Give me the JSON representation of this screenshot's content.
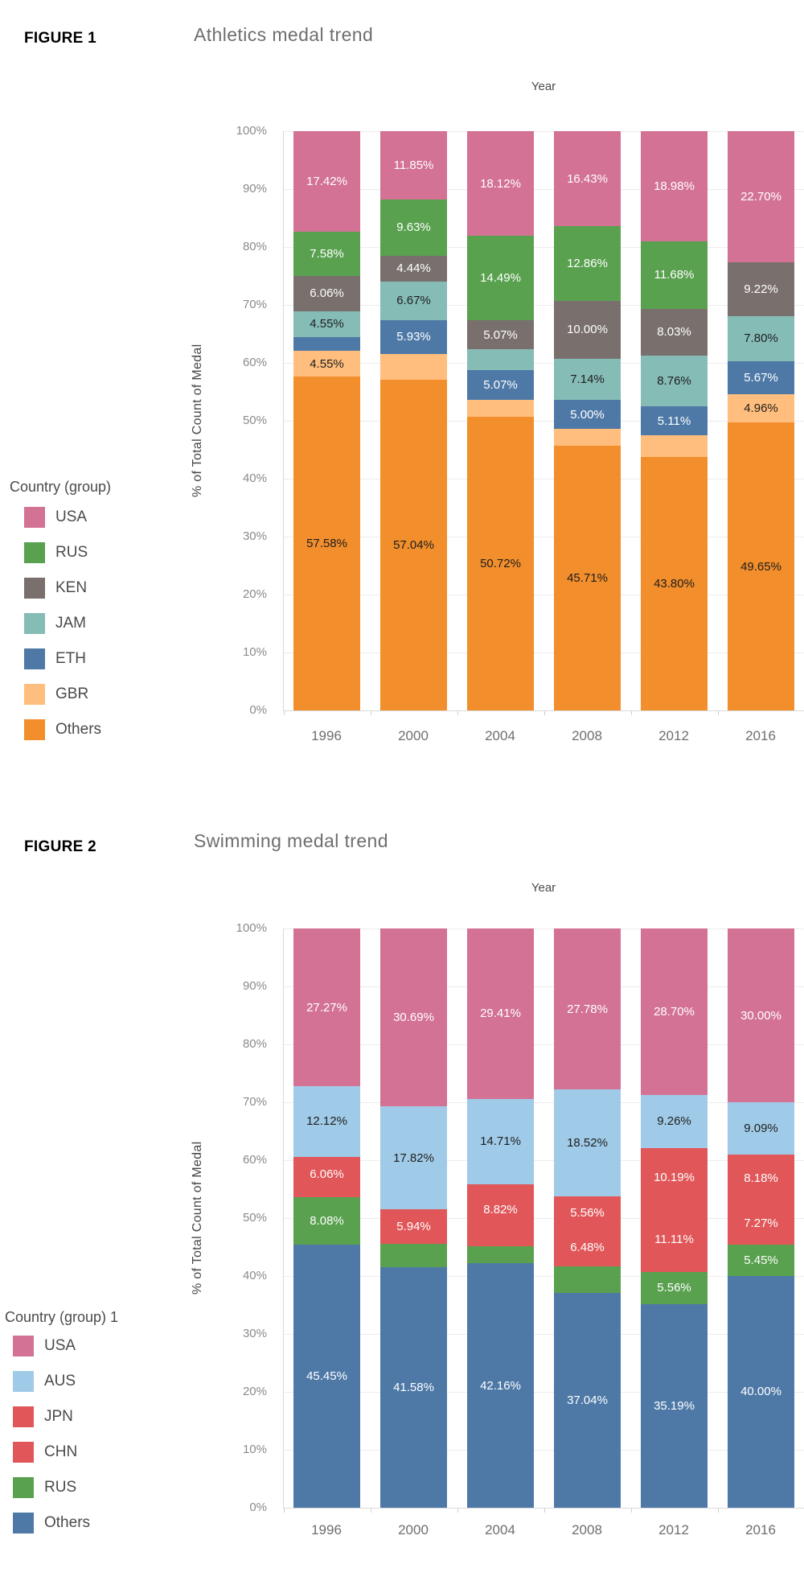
{
  "figures": [
    {
      "figure_label": "FIGURE 1",
      "title": "Athletics medal trend",
      "x_axis_title": "Year",
      "y_axis_title": "% of Total Count of Medal",
      "y_ticks": [
        "100%",
        "90%",
        "80%",
        "70%",
        "60%",
        "50%",
        "40%",
        "30%",
        "20%",
        "10%",
        "0%"
      ],
      "legend_title": "Country (group)",
      "legend": [
        {
          "label": "USA",
          "color": "#D37295"
        },
        {
          "label": "RUS",
          "color": "#59A14F"
        },
        {
          "label": "KEN",
          "color": "#79706E"
        },
        {
          "label": "JAM",
          "color": "#86BCB6"
        },
        {
          "label": "ETH",
          "color": "#4E79A7"
        },
        {
          "label": "GBR",
          "color": "#FFBE7D"
        },
        {
          "label": "Others",
          "color": "#F28E2B"
        }
      ],
      "chart_data": {
        "type": "bar",
        "subtype": "stacked-100pct",
        "title": "Athletics medal trend",
        "xlabel": "Year",
        "ylabel": "% of Total Count of Medal",
        "ylim": [
          0,
          100
        ],
        "grid": true,
        "legend_position": "left",
        "categories": [
          "1996",
          "2000",
          "2004",
          "2008",
          "2012",
          "2016"
        ],
        "series": [
          {
            "name": "USA",
            "color": "#D37295",
            "label_color": "#ffffff",
            "values": [
              17.42,
              11.85,
              18.12,
              16.43,
              18.98,
              22.7
            ],
            "labels": [
              "17.42%",
              "11.85%",
              "18.12%",
              "16.43%",
              "18.98%",
              "22.70%"
            ]
          },
          {
            "name": "RUS",
            "color": "#59A14F",
            "label_color": "#ffffff",
            "values": [
              7.58,
              9.63,
              14.49,
              12.86,
              11.68,
              0
            ],
            "labels": [
              "7.58%",
              "9.63%",
              "14.49%",
              "12.86%",
              "11.68%",
              ""
            ]
          },
          {
            "name": "KEN",
            "color": "#79706E",
            "label_color": "#ffffff",
            "values": [
              6.06,
              4.44,
              5.07,
              10.0,
              8.03,
              9.22
            ],
            "labels": [
              "6.06%",
              "4.44%",
              "5.07%",
              "10.00%",
              "8.03%",
              "9.22%"
            ]
          },
          {
            "name": "JAM",
            "color": "#86BCB6",
            "label_color": "#1e1e1e",
            "values": [
              4.55,
              6.67,
              3.62,
              7.14,
              8.76,
              7.8
            ],
            "labels": [
              "4.55%",
              "6.67%",
              "",
              "7.14%",
              "8.76%",
              "7.80%"
            ]
          },
          {
            "name": "ETH",
            "color": "#4E79A7",
            "label_color": "#ffffff",
            "values": [
              2.27,
              5.93,
              5.07,
              5.0,
              5.11,
              5.67
            ],
            "labels": [
              "",
              "5.93%",
              "5.07%",
              "5.00%",
              "5.11%",
              "5.67%"
            ]
          },
          {
            "name": "GBR",
            "color": "#FFBE7D",
            "label_color": "#1e1e1e",
            "values": [
              4.55,
              4.44,
              2.9,
              2.86,
              3.65,
              4.96
            ],
            "labels": [
              "4.55%",
              "",
              "",
              "",
              "",
              "4.96%"
            ]
          },
          {
            "name": "Others",
            "color": "#F28E2B",
            "label_color": "#1e1e1e",
            "values": [
              57.58,
              57.04,
              50.72,
              45.71,
              43.8,
              49.65
            ],
            "labels": [
              "57.58%",
              "57.04%",
              "50.72%",
              "45.71%",
              "43.80%",
              "49.65%"
            ]
          }
        ]
      }
    },
    {
      "figure_label": "FIGURE 2",
      "title": "Swimming medal trend",
      "x_axis_title": "Year",
      "y_axis_title": "% of Total Count of Medal",
      "y_ticks": [
        "100%",
        "90%",
        "80%",
        "70%",
        "60%",
        "50%",
        "40%",
        "30%",
        "20%",
        "10%",
        "0%"
      ],
      "legend_title": "Country (group) 1",
      "legend": [
        {
          "label": "USA",
          "color": "#D37295"
        },
        {
          "label": "AUS",
          "color": "#A0CBE8"
        },
        {
          "label": "JPN",
          "color": "#E15759"
        },
        {
          "label": "CHN",
          "color": "#E15759"
        },
        {
          "label": "RUS",
          "color": "#59A14F"
        },
        {
          "label": "Others",
          "color": "#4E79A7"
        }
      ],
      "chart_data": {
        "type": "bar",
        "subtype": "stacked-100pct",
        "title": "Swimming medal trend",
        "xlabel": "Year",
        "ylabel": "% of Total Count of Medal",
        "ylim": [
          0,
          100
        ],
        "grid": true,
        "legend_position": "left",
        "categories": [
          "1996",
          "2000",
          "2004",
          "2008",
          "2012",
          "2016"
        ],
        "series": [
          {
            "name": "USA",
            "color": "#D37295",
            "label_color": "#ffffff",
            "values": [
              27.27,
              30.69,
              29.41,
              27.78,
              28.7,
              30.0
            ],
            "labels": [
              "27.27%",
              "30.69%",
              "29.41%",
              "27.78%",
              "28.70%",
              "30.00%"
            ]
          },
          {
            "name": "AUS",
            "color": "#A0CBE8",
            "label_color": "#1e1e1e",
            "values": [
              12.12,
              17.82,
              14.71,
              18.52,
              9.26,
              9.09
            ],
            "labels": [
              "12.12%",
              "17.82%",
              "14.71%",
              "18.52%",
              "9.26%",
              "9.09%"
            ]
          },
          {
            "name": "JPN",
            "color": "#E15759",
            "label_color": "#ffffff",
            "values": [
              6.06,
              5.94,
              8.82,
              5.56,
              10.19,
              8.18
            ],
            "labels": [
              "6.06%",
              "5.94%",
              "8.82%",
              "5.56%",
              "10.19%",
              "8.18%"
            ]
          },
          {
            "name": "CHN",
            "color": "#E15759",
            "label_color": "#ffffff",
            "values": [
              1.01,
              0,
              1.96,
              6.48,
              11.11,
              7.27
            ],
            "labels": [
              "",
              "",
              "",
              "6.48%",
              "11.11%",
              "7.27%"
            ]
          },
          {
            "name": "RUS",
            "color": "#59A14F",
            "label_color": "#ffffff",
            "values": [
              8.08,
              3.96,
              2.94,
              4.63,
              5.56,
              5.45
            ],
            "labels": [
              "8.08%",
              "",
              "",
              "",
              "5.56%",
              "5.45%"
            ]
          },
          {
            "name": "Others",
            "color": "#4E79A7",
            "label_color": "#ffffff",
            "values": [
              45.45,
              41.58,
              42.16,
              37.04,
              35.19,
              40.0
            ],
            "labels": [
              "45.45%",
              "41.58%",
              "42.16%",
              "37.04%",
              "35.19%",
              "40.00%"
            ]
          }
        ]
      }
    }
  ]
}
